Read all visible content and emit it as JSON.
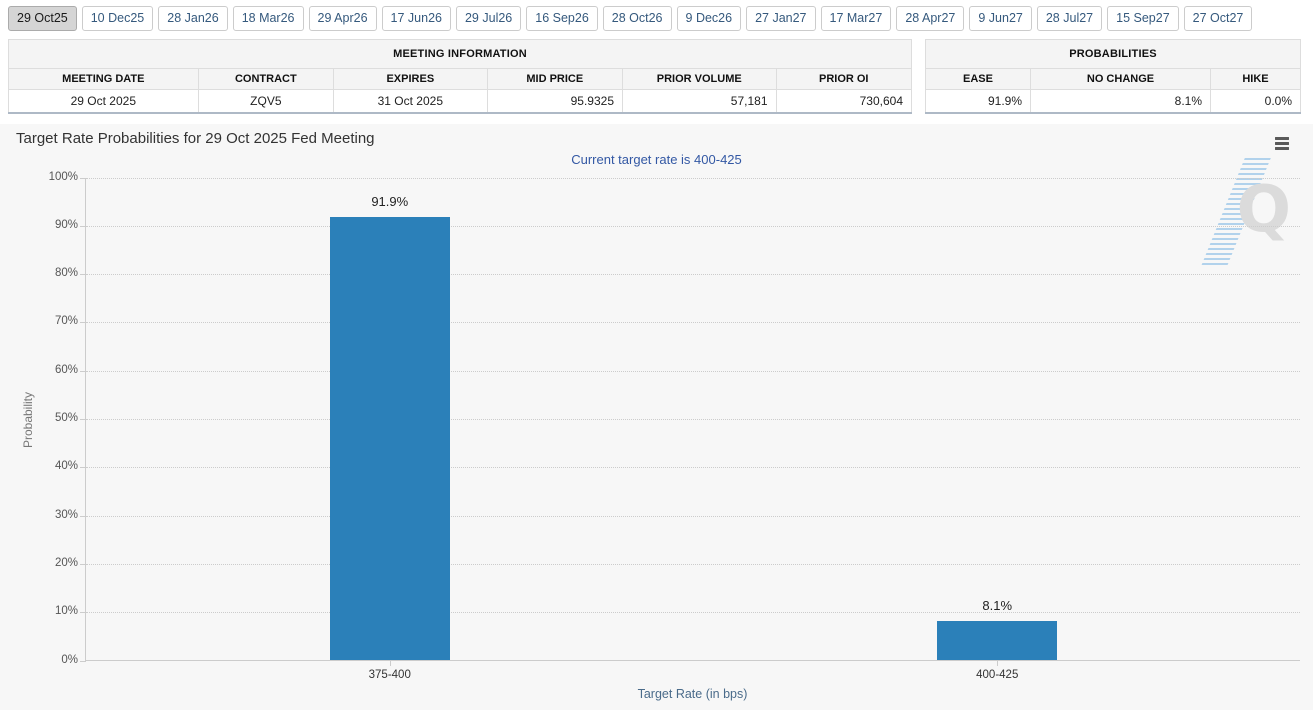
{
  "tabs": {
    "items": [
      {
        "label": "29 Oct25",
        "selected": true
      },
      {
        "label": "10 Dec25",
        "selected": false
      },
      {
        "label": "28 Jan26",
        "selected": false
      },
      {
        "label": "18 Mar26",
        "selected": false
      },
      {
        "label": "29 Apr26",
        "selected": false
      },
      {
        "label": "17 Jun26",
        "selected": false
      },
      {
        "label": "29 Jul26",
        "selected": false
      },
      {
        "label": "16 Sep26",
        "selected": false
      },
      {
        "label": "28 Oct26",
        "selected": false
      },
      {
        "label": "9 Dec26",
        "selected": false
      },
      {
        "label": "27 Jan27",
        "selected": false
      },
      {
        "label": "17 Mar27",
        "selected": false
      },
      {
        "label": "28 Apr27",
        "selected": false
      },
      {
        "label": "9 Jun27",
        "selected": false
      },
      {
        "label": "28 Jul27",
        "selected": false
      },
      {
        "label": "15 Sep27",
        "selected": false
      },
      {
        "label": "27 Oct27",
        "selected": false
      }
    ]
  },
  "meeting_information": {
    "title": "MEETING INFORMATION",
    "columns": [
      "MEETING DATE",
      "CONTRACT",
      "EXPIRES",
      "MID PRICE",
      "PRIOR VOLUME",
      "PRIOR OI"
    ],
    "row": [
      "29 Oct 2025",
      "ZQV5",
      "31 Oct 2025",
      "95.9325",
      "57,181",
      "730,604"
    ]
  },
  "probabilities": {
    "title": "PROBABILITIES",
    "columns": [
      "EASE",
      "NO CHANGE",
      "HIKE"
    ],
    "row": [
      "91.9%",
      "8.1%",
      "0.0%"
    ]
  },
  "chart": {
    "title": "Target Rate Probabilities for 29 Oct 2025 Fed Meeting",
    "subtitle": "Current target rate is 400-425",
    "menu_icon": "hamburger-menu-icon",
    "watermark_letter": "Q",
    "bar_color": "#2b80b9",
    "subtitle_color": "#3358a4"
  },
  "chart_data": {
    "type": "bar",
    "categories": [
      "375-400",
      "400-425"
    ],
    "values": [
      91.9,
      8.1
    ],
    "data_labels": [
      "91.9%",
      "8.1%"
    ],
    "title": "Target Rate Probabilities for 29 Oct 2025 Fed Meeting",
    "subtitle": "Current target rate is 400-425",
    "xlabel": "Target Rate (in bps)",
    "ylabel": "Probability",
    "ylim": [
      0,
      100
    ],
    "ytick_step": 10,
    "ytick_suffix": "%",
    "grid": "horizontal-dotted",
    "legend": "none",
    "bar_color": "#2b80b9"
  }
}
